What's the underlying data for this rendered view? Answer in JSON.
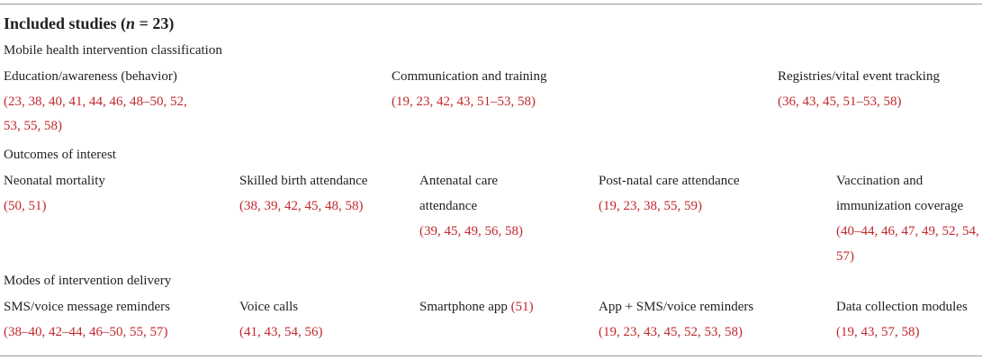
{
  "title": {
    "prefix": "Included studies (",
    "n": "n",
    "suffix": " = 23)"
  },
  "colors": {
    "reference": "#c0282d",
    "rule": "#9a9a9a",
    "text": "#222222"
  },
  "section_intervention": {
    "heading": "Mobile health intervention classification",
    "education": {
      "label": "Education/awareness (behavior)",
      "refs_line1": "(23, 38, 40, 41, 44, 46, 48–50, 52,",
      "refs_line2": "53, 55, 58)"
    },
    "communication": {
      "label": "Communication and training",
      "refs": "(19, 23, 42, 43, 51–53, 58)"
    },
    "registries": {
      "label": "Registries/vital event tracking",
      "refs": "(36, 43, 45, 51–53, 58)"
    }
  },
  "section_outcomes": {
    "heading": "Outcomes of interest",
    "neonatal": {
      "label": "Neonatal mortality",
      "refs": "(50, 51)"
    },
    "skilled": {
      "label": "Skilled birth attendance",
      "refs": "(38, 39, 42, 45, 48, 58)"
    },
    "antenatal": {
      "label_line1": "Antenatal care",
      "label_line2": "attendance",
      "refs": "(39, 45, 49, 56, 58)"
    },
    "postnatal": {
      "label": "Post-natal care attendance",
      "refs": "(19, 23, 38, 55, 59)"
    },
    "vaccination": {
      "label_line1": "Vaccination and",
      "label_line2": "immunization coverage",
      "refs_line1": "(40–44, 46, 47, 49, 52, 54,",
      "refs_line2": "57)"
    }
  },
  "section_modes": {
    "heading": "Modes of intervention delivery",
    "sms": {
      "label": "SMS/voice message reminders",
      "refs": "(38–40, 42–44, 46–50, 55, 57)"
    },
    "voice": {
      "label": "Voice calls",
      "refs": "(41, 43, 54, 56)"
    },
    "smartphone": {
      "label": "Smartphone app",
      "refs": "(51)"
    },
    "app_sms": {
      "label": "App + SMS/voice reminders",
      "refs": "(19, 23, 43, 45, 52, 53, 58)"
    },
    "data_collection": {
      "label": "Data collection modules",
      "refs": "(19, 43, 57, 58)"
    }
  }
}
